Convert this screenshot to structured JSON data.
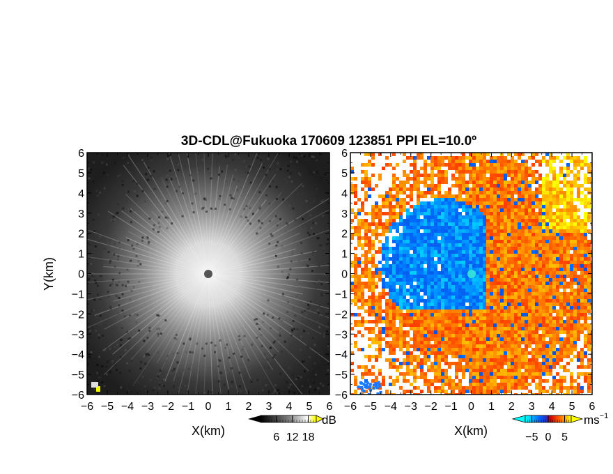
{
  "title": "3D-CDL@Fukuoka 170609 123851 PPI EL=10.0º",
  "chart_data": [
    {
      "type": "heatmap",
      "name": "snr-ppi",
      "xlabel": "X(km)",
      "ylabel": "Y(km)",
      "xlim": [
        -6,
        6
      ],
      "ylim": [
        -6,
        6
      ],
      "xticks": [
        "−6",
        "−5",
        "−4",
        "−3",
        "−2",
        "−1",
        "0",
        "1",
        "2",
        "3",
        "4",
        "5",
        "6"
      ],
      "yticks": [
        "6",
        "5",
        "4",
        "3",
        "2",
        "1",
        "0",
        "−1",
        "−2",
        "−3",
        "−4",
        "−5",
        "−6"
      ],
      "colorbar": {
        "unit": "dB",
        "ticks": [
          "6",
          "12",
          "18"
        ],
        "range": [
          0,
          21
        ],
        "colors": [
          "#000000",
          "#555555",
          "#aaaaaa",
          "#ffffff",
          "#ffff00"
        ]
      },
      "description_colors": {
        "low": "#1a1a1a",
        "high": "#e6e6e6"
      }
    },
    {
      "type": "heatmap",
      "name": "doppler-velocity-ppi",
      "xlabel": "X(km)",
      "xlim": [
        -6,
        6
      ],
      "ylim": [
        -6,
        6
      ],
      "xticks": [
        "−6",
        "−5",
        "−4",
        "−3",
        "−2",
        "−1",
        "0",
        "1",
        "2",
        "3",
        "4",
        "5",
        "6"
      ],
      "yticks": [
        "6",
        "5",
        "4",
        "3",
        "2",
        "1",
        "0",
        "−1",
        "−2",
        "−3",
        "−4",
        "−5",
        "−6"
      ],
      "colorbar": {
        "unit": "ms",
        "unit_exp": "−1",
        "ticks": [
          "−5",
          "0",
          "5"
        ],
        "range": [
          -7,
          7
        ],
        "colors": [
          "#00ffff",
          "#0055ff",
          "#cc0000",
          "#ff6600",
          "#ffff00"
        ]
      }
    }
  ]
}
